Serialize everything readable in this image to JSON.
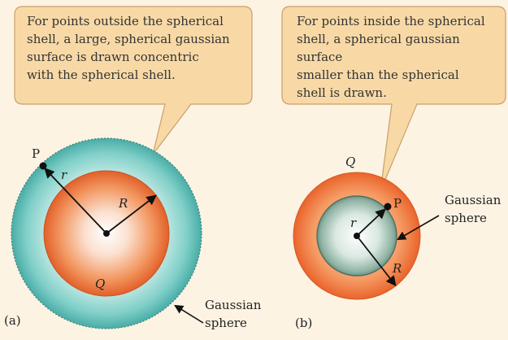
{
  "panel_a": {
    "callout_lines": [
      "For points outside the spherical",
      "shell, a large, spherical gaussian",
      "surface is drawn concentric",
      "with the spherical shell."
    ],
    "point_label": "P",
    "r_label": "r",
    "R_label": "R",
    "charge_label": "Q",
    "gaussian_label_lines": [
      "Gaussian",
      "sphere"
    ],
    "panel_label": "(a)"
  },
  "panel_b": {
    "callout_lines": [
      "For points inside the spherical",
      "shell, a spherical gaussian surface",
      "smaller than the spherical",
      "shell is drawn."
    ],
    "point_label": "P",
    "r_label": "r",
    "R_label": "R",
    "charge_label": "Q",
    "gaussian_label_lines": [
      "Gaussian",
      "sphere"
    ],
    "panel_label": "(b)"
  },
  "colors": {
    "background": "#fdf3e3",
    "callout_fill": "#f8d9a6",
    "callout_stroke": "#c9a06a",
    "shell_orange": "#e9642c",
    "gaussian_teal": "#4fb7b0",
    "gaussian_grey_green": "#7fa89a"
  }
}
